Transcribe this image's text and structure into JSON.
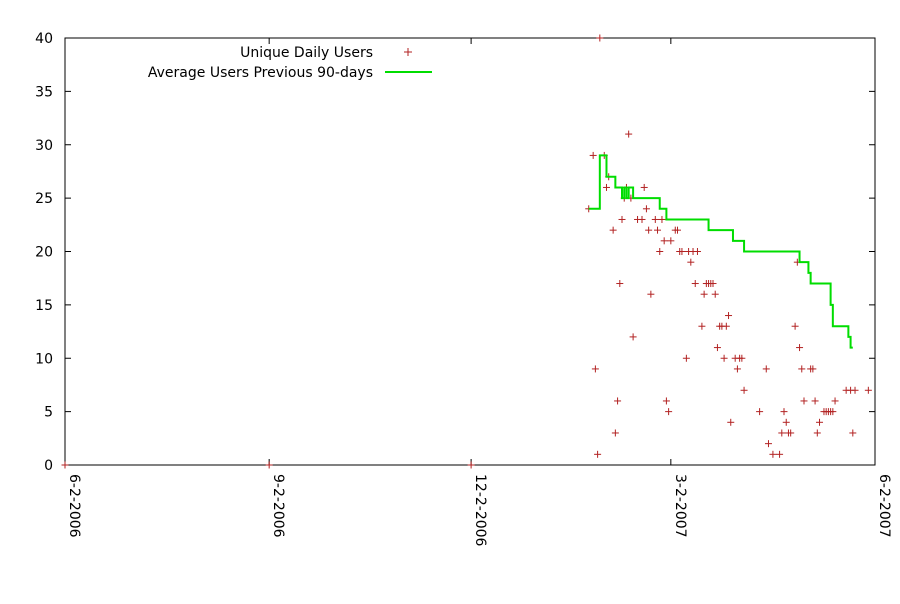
{
  "chart_data": {
    "type": "scatter",
    "title": "",
    "xlabel": "",
    "ylabel": "",
    "x_ticks": [
      "6-2-2006",
      "9-2-2006",
      "12-2-2006",
      "3-2-2007",
      "6-2-2007"
    ],
    "xlim": [
      "2006-06-02",
      "2007-06-02"
    ],
    "ylim": [
      0,
      40
    ],
    "y_ticks": [
      0,
      5,
      10,
      15,
      20,
      25,
      30,
      35,
      40
    ],
    "grid": false,
    "legend_position": "top-left",
    "series": [
      {
        "name": "Unique Daily Users",
        "type": "scatter",
        "color": "#b22222",
        "marker": "plus",
        "points": [
          [
            "2006-06-02",
            0
          ],
          [
            "2006-09-02",
            0
          ],
          [
            "2006-12-02",
            0
          ],
          [
            "2007-01-24",
            24
          ],
          [
            "2007-01-26",
            29
          ],
          [
            "2007-01-27",
            9
          ],
          [
            "2007-01-28",
            1
          ],
          [
            "2007-01-29",
            40
          ],
          [
            "2007-01-31",
            29
          ],
          [
            "2007-02-01",
            26
          ],
          [
            "2007-02-02",
            27
          ],
          [
            "2007-02-04",
            22
          ],
          [
            "2007-02-05",
            3
          ],
          [
            "2007-02-06",
            6
          ],
          [
            "2007-02-07",
            17
          ],
          [
            "2007-02-08",
            23
          ],
          [
            "2007-02-09",
            25
          ],
          [
            "2007-02-10",
            26
          ],
          [
            "2007-02-11",
            31
          ],
          [
            "2007-02-12",
            25
          ],
          [
            "2007-02-13",
            12
          ],
          [
            "2007-02-15",
            23
          ],
          [
            "2007-02-17",
            23
          ],
          [
            "2007-02-18",
            26
          ],
          [
            "2007-02-19",
            24
          ],
          [
            "2007-02-20",
            22
          ],
          [
            "2007-02-21",
            16
          ],
          [
            "2007-02-23",
            23
          ],
          [
            "2007-02-24",
            22
          ],
          [
            "2007-02-25",
            20
          ],
          [
            "2007-02-26",
            23
          ],
          [
            "2007-02-27",
            21
          ],
          [
            "2007-02-28",
            6
          ],
          [
            "2007-03-01",
            5
          ],
          [
            "2007-03-02",
            21
          ],
          [
            "2007-03-04",
            22
          ],
          [
            "2007-03-05",
            22
          ],
          [
            "2007-03-06",
            20
          ],
          [
            "2007-03-07",
            20
          ],
          [
            "2007-03-09",
            10
          ],
          [
            "2007-03-10",
            20
          ],
          [
            "2007-03-11",
            19
          ],
          [
            "2007-03-12",
            20
          ],
          [
            "2007-03-13",
            17
          ],
          [
            "2007-03-14",
            20
          ],
          [
            "2007-03-16",
            13
          ],
          [
            "2007-03-17",
            16
          ],
          [
            "2007-03-18",
            17
          ],
          [
            "2007-03-19",
            17
          ],
          [
            "2007-03-20",
            17
          ],
          [
            "2007-03-21",
            17
          ],
          [
            "2007-03-22",
            16
          ],
          [
            "2007-03-23",
            11
          ],
          [
            "2007-03-24",
            13
          ],
          [
            "2007-03-25",
            13
          ],
          [
            "2007-03-26",
            10
          ],
          [
            "2007-03-27",
            13
          ],
          [
            "2007-03-28",
            14
          ],
          [
            "2007-03-29",
            4
          ],
          [
            "2007-03-31",
            10
          ],
          [
            "2007-04-01",
            9
          ],
          [
            "2007-04-02",
            10
          ],
          [
            "2007-04-03",
            10
          ],
          [
            "2007-04-04",
            7
          ],
          [
            "2007-04-11",
            5
          ],
          [
            "2007-04-14",
            9
          ],
          [
            "2007-04-15",
            2
          ],
          [
            "2007-04-17",
            1
          ],
          [
            "2007-04-20",
            1
          ],
          [
            "2007-04-21",
            3
          ],
          [
            "2007-04-22",
            5
          ],
          [
            "2007-04-23",
            4
          ],
          [
            "2007-04-24",
            3
          ],
          [
            "2007-04-25",
            3
          ],
          [
            "2007-04-27",
            13
          ],
          [
            "2007-04-28",
            19
          ],
          [
            "2007-04-29",
            11
          ],
          [
            "2007-04-30",
            9
          ],
          [
            "2007-05-01",
            6
          ],
          [
            "2007-05-04",
            9
          ],
          [
            "2007-05-05",
            9
          ],
          [
            "2007-05-06",
            6
          ],
          [
            "2007-05-07",
            3
          ],
          [
            "2007-05-08",
            4
          ],
          [
            "2007-05-10",
            5
          ],
          [
            "2007-05-11",
            5
          ],
          [
            "2007-05-12",
            5
          ],
          [
            "2007-05-13",
            5
          ],
          [
            "2007-05-14",
            5
          ],
          [
            "2007-05-15",
            6
          ],
          [
            "2007-05-20",
            7
          ],
          [
            "2007-05-22",
            7
          ],
          [
            "2007-05-23",
            3
          ],
          [
            "2007-05-24",
            7
          ],
          [
            "2007-05-30",
            7
          ]
        ]
      },
      {
        "name": "Average Users Previous 90-days",
        "type": "line",
        "color": "#00dd00",
        "step": true,
        "points": [
          [
            "2007-01-24",
            24
          ],
          [
            "2007-01-27",
            24
          ],
          [
            "2007-01-28",
            24
          ],
          [
            "2007-01-29",
            29
          ],
          [
            "2007-01-31",
            29
          ],
          [
            "2007-02-01",
            27
          ],
          [
            "2007-02-04",
            27
          ],
          [
            "2007-02-05",
            26
          ],
          [
            "2007-02-07",
            26
          ],
          [
            "2007-02-08",
            25
          ],
          [
            "2007-02-09",
            26
          ],
          [
            "2007-02-10",
            25
          ],
          [
            "2007-02-11",
            26
          ],
          [
            "2007-02-13",
            25
          ],
          [
            "2007-02-14",
            25
          ],
          [
            "2007-02-24",
            25
          ],
          [
            "2007-02-25",
            24
          ],
          [
            "2007-02-27",
            24
          ],
          [
            "2007-02-28",
            23
          ],
          [
            "2007-03-18",
            23
          ],
          [
            "2007-03-19",
            22
          ],
          [
            "2007-03-29",
            22
          ],
          [
            "2007-03-30",
            21
          ],
          [
            "2007-04-03",
            21
          ],
          [
            "2007-04-04",
            20
          ],
          [
            "2007-04-28",
            20
          ],
          [
            "2007-04-29",
            19
          ],
          [
            "2007-05-01",
            19
          ],
          [
            "2007-05-03",
            18
          ],
          [
            "2007-05-04",
            17
          ],
          [
            "2007-05-11",
            17
          ],
          [
            "2007-05-13",
            15
          ],
          [
            "2007-05-14",
            13
          ],
          [
            "2007-05-20",
            13
          ],
          [
            "2007-05-21",
            12
          ],
          [
            "2007-05-22",
            11
          ],
          [
            "2007-05-23",
            11
          ]
        ]
      }
    ]
  }
}
